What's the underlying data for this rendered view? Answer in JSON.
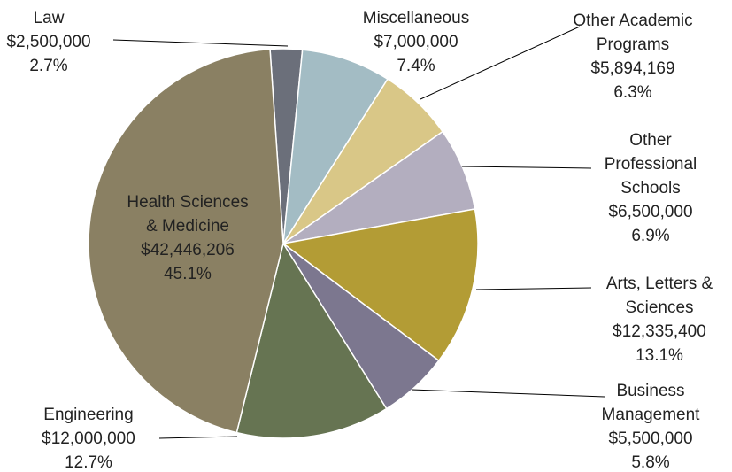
{
  "chart_data": {
    "type": "pie",
    "categories": [
      "Law",
      "Miscellaneous",
      "Other Academic Programs",
      "Other Professional Schools",
      "Arts, Letters & Sciences",
      "Business Management",
      "Engineering",
      "Health Sciences & Medicine"
    ],
    "values": [
      2500000,
      7000000,
      5894169,
      6500000,
      12335400,
      5500000,
      12000000,
      42446206
    ],
    "value_labels": [
      "$2,500,000",
      "$7,000,000",
      "$5,894,169",
      "$6,500,000",
      "$12,335,400",
      "$5,500,000",
      "$12,000,000",
      "$42,446,206"
    ],
    "shares": [
      2.7,
      7.4,
      6.3,
      6.9,
      13.1,
      5.8,
      12.7,
      45.1
    ],
    "share_labels": [
      "2.7%",
      "7.4%",
      "6.3%",
      "6.9%",
      "13.1%",
      "5.8%",
      "12.7%",
      "45.1%"
    ],
    "colors": [
      "#6b6f7a",
      "#a3bcc4",
      "#d9c787",
      "#b3aebf",
      "#b39c35",
      "#7c778f",
      "#667452",
      "#8a8063"
    ]
  }
}
